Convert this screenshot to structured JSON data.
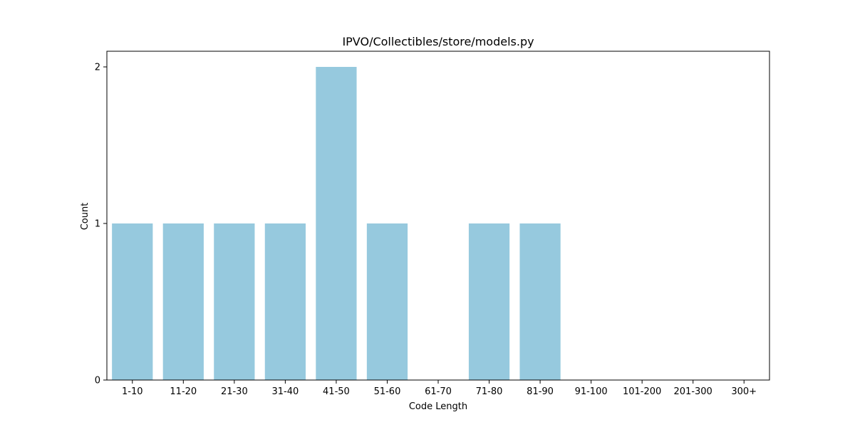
{
  "chart_data": {
    "type": "bar",
    "title": "IPVO/Collectibles/store/models.py",
    "xlabel": "Code Length",
    "ylabel": "Count",
    "categories": [
      "1-10",
      "11-20",
      "21-30",
      "31-40",
      "41-50",
      "51-60",
      "61-70",
      "71-80",
      "81-90",
      "91-100",
      "101-200",
      "201-300",
      "300+"
    ],
    "values": [
      1,
      1,
      1,
      1,
      2,
      1,
      0,
      1,
      1,
      0,
      0,
      0,
      0
    ],
    "ylim": [
      0,
      2.1
    ],
    "yticks": [
      0,
      1,
      2
    ],
    "bar_color": "#96c9de",
    "grid": false,
    "legend": false
  }
}
